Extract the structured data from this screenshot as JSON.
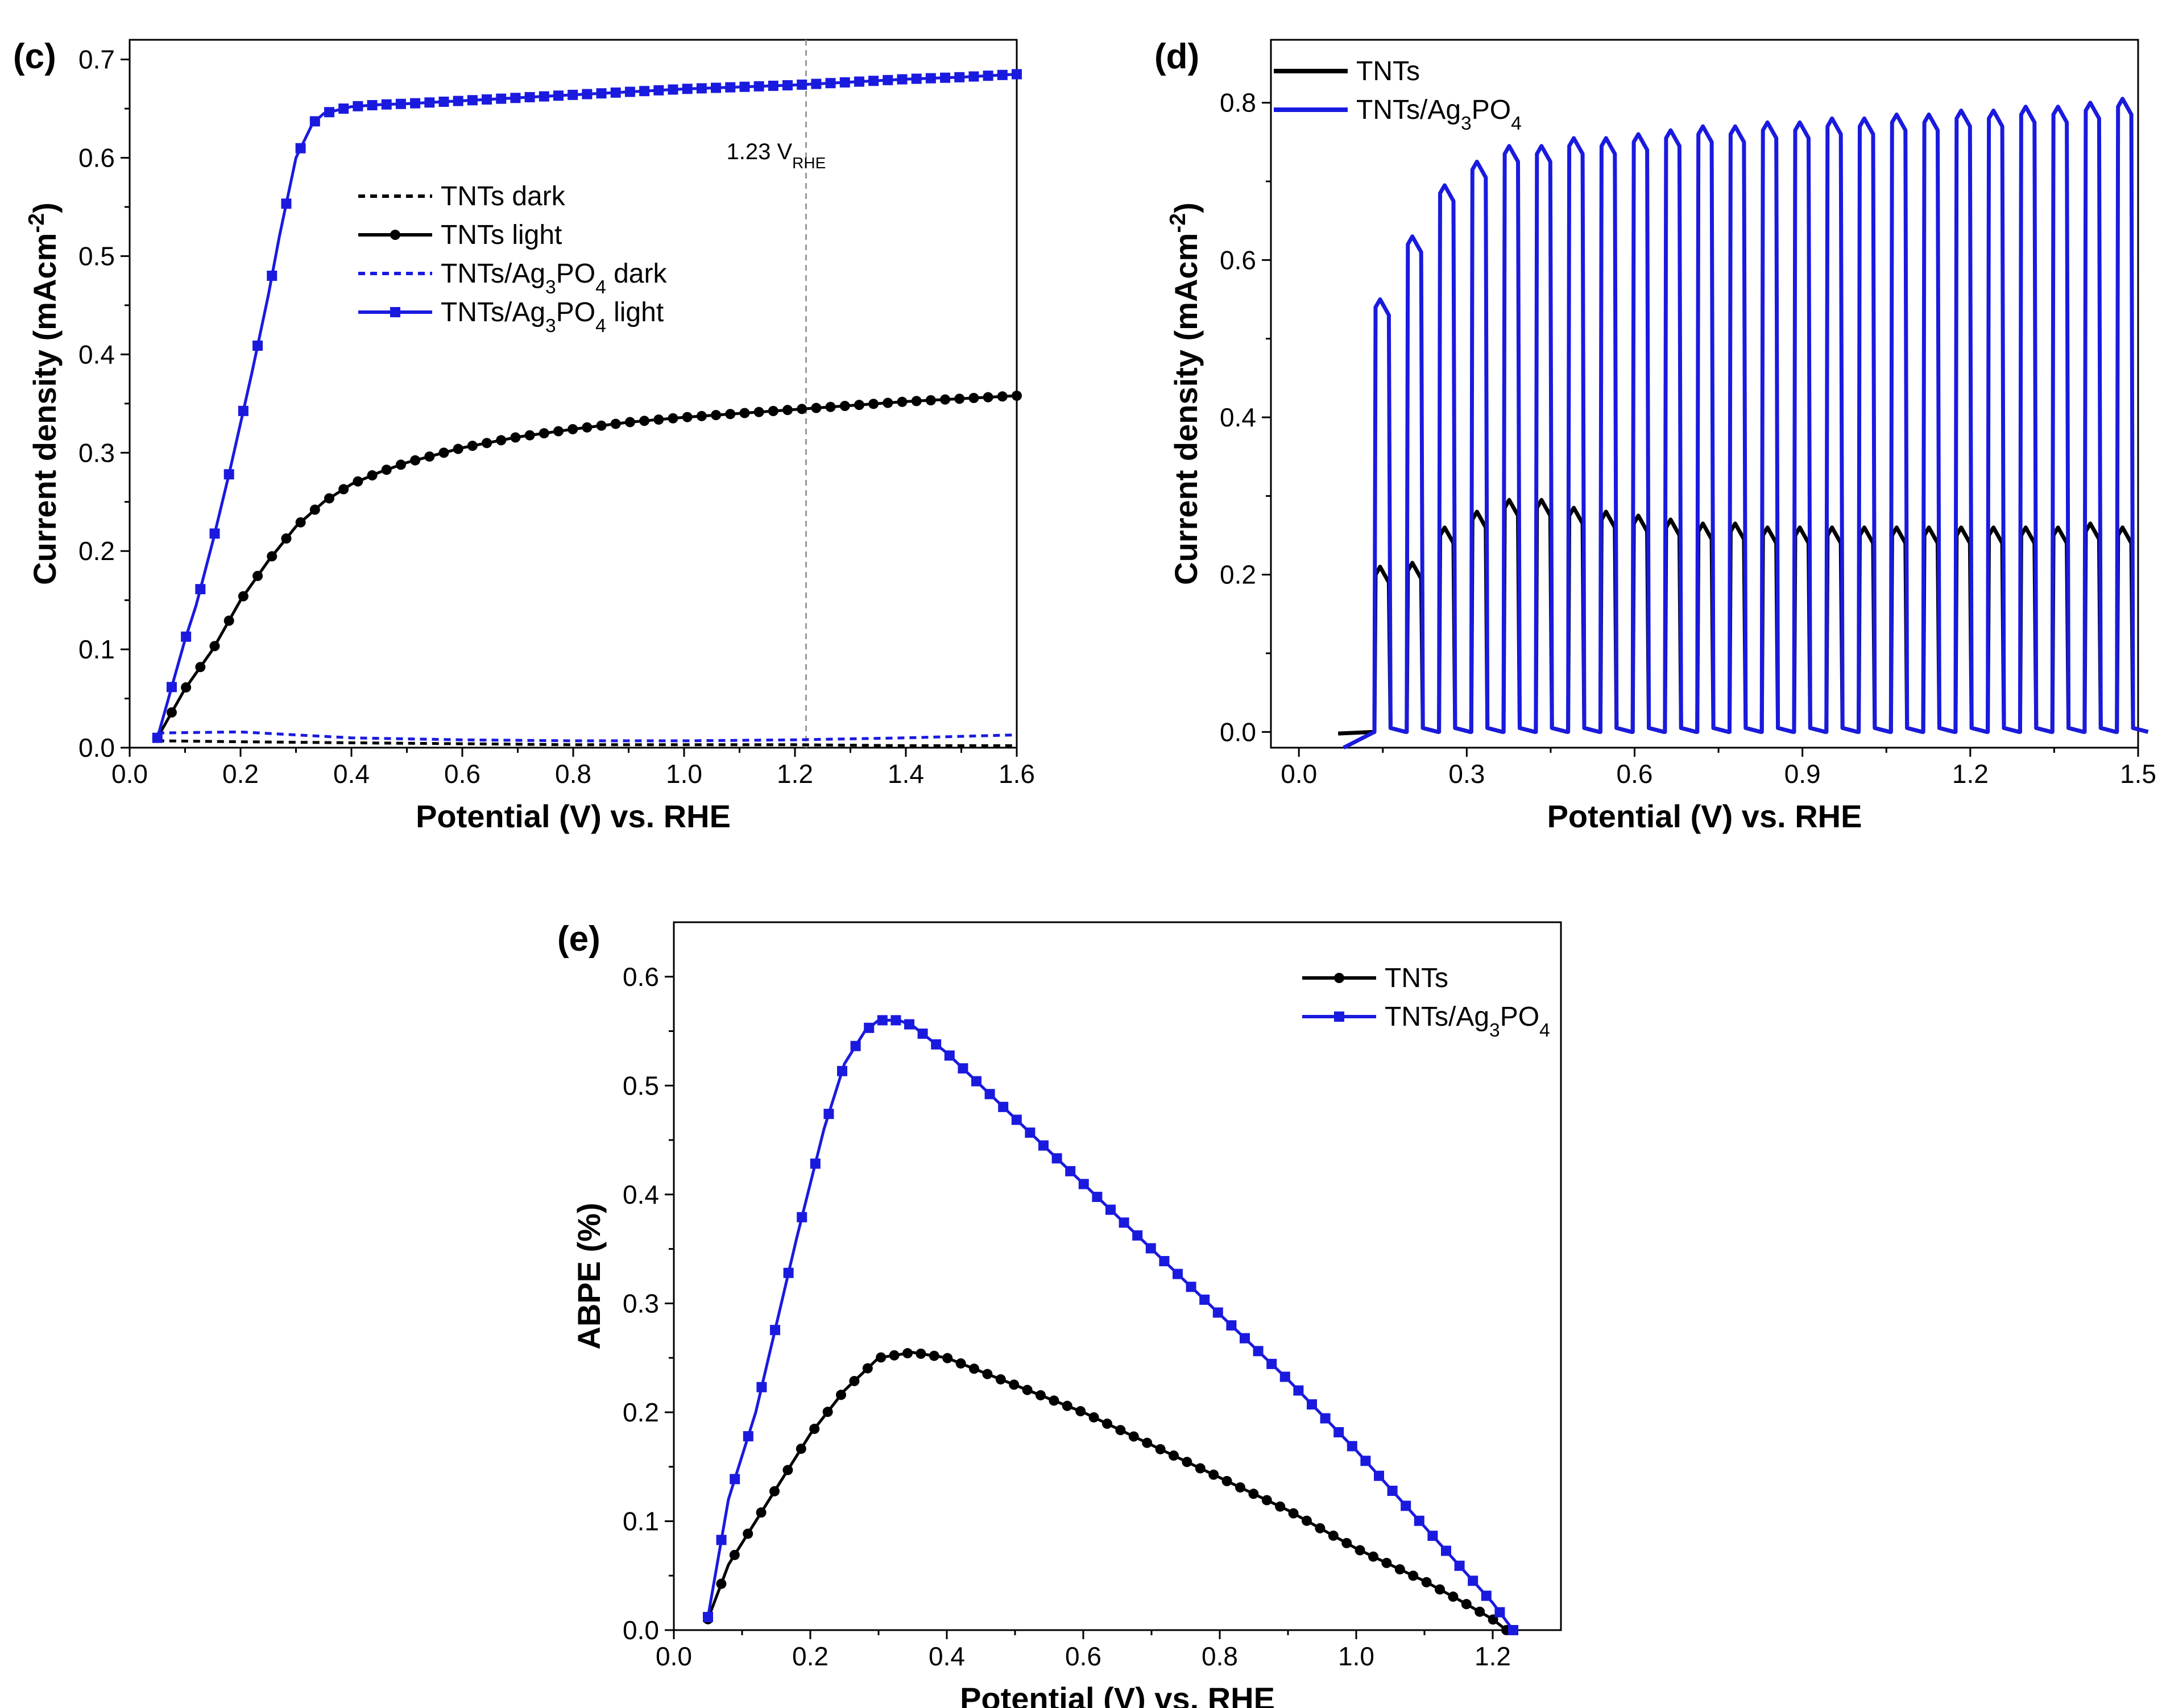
{
  "chart_data": [
    {
      "id": "c",
      "type": "line",
      "panel_label": "(c)",
      "title": "",
      "xlabel": "Potential (V) vs. RHE",
      "ylabel": "Current density (mAcm",
      "ylabel_sup": "-2",
      "ylabel_end": ")",
      "xlim": [
        0.0,
        1.6
      ],
      "ylim": [
        0.0,
        0.72
      ],
      "xticks": [
        0.0,
        0.2,
        0.4,
        0.6,
        0.8,
        1.0,
        1.2,
        1.4,
        1.6
      ],
      "xtick_labels": [
        "0.0",
        "0.2",
        "0.4",
        "0.6",
        "0.8",
        "1.0",
        "1.2",
        "1.4",
        "1.6"
      ],
      "yticks": [
        0.0,
        0.1,
        0.2,
        0.3,
        0.4,
        0.5,
        0.6,
        0.7
      ],
      "ytick_labels": [
        "0.0",
        "0.1",
        "0.2",
        "0.3",
        "0.4",
        "0.5",
        "0.6",
        "0.7"
      ],
      "grid": false,
      "legend_position": "center",
      "annotation": {
        "text": "1.23 V",
        "sub": "RHE",
        "x": 1.22
      },
      "series": [
        {
          "name": "TNTs dark",
          "label": "TNTs dark",
          "label_sub": "",
          "label_end": "",
          "color": "#000000",
          "style": "dotted",
          "marker": "none",
          "x": [
            0.05,
            0.2,
            0.4,
            0.6,
            0.8,
            1.0,
            1.2,
            1.4,
            1.6
          ],
          "values": [
            0.007,
            0.006,
            0.005,
            0.004,
            0.003,
            0.003,
            0.003,
            0.002,
            0.002
          ]
        },
        {
          "name": "TNTs light",
          "label": "TNTs light",
          "label_sub": "",
          "label_end": "",
          "color": "#000000",
          "style": "solid",
          "marker": "circle",
          "x": [
            0.05,
            0.08,
            0.1,
            0.15,
            0.2,
            0.25,
            0.3,
            0.35,
            0.4,
            0.45,
            0.5,
            0.6,
            0.7,
            0.8,
            0.9,
            1.0,
            1.1,
            1.2,
            1.3,
            1.4,
            1.5,
            1.6
          ],
          "values": [
            0.01,
            0.04,
            0.06,
            0.1,
            0.15,
            0.19,
            0.225,
            0.25,
            0.268,
            0.28,
            0.29,
            0.305,
            0.316,
            0.324,
            0.331,
            0.336,
            0.34,
            0.344,
            0.348,
            0.352,
            0.355,
            0.358
          ]
        },
        {
          "name": "TNTs/Ag3PO4 dark",
          "label": "TNTs/Ag",
          "label_sub": "3",
          "label_mid": "PO",
          "label_sub2": "4",
          "label_end": " dark",
          "color": "#1a1adf",
          "style": "dotted",
          "marker": "none",
          "x": [
            0.05,
            0.2,
            0.3,
            0.4,
            0.6,
            0.8,
            1.0,
            1.2,
            1.4,
            1.6
          ],
          "values": [
            0.015,
            0.016,
            0.013,
            0.01,
            0.008,
            0.007,
            0.007,
            0.008,
            0.01,
            0.013
          ]
        },
        {
          "name": "TNTs/Ag3PO4 light",
          "label": "TNTs/Ag",
          "label_sub": "3",
          "label_mid": "PO",
          "label_sub2": "4",
          "label_end": " light",
          "color": "#1a1adf",
          "style": "solid",
          "marker": "square",
          "x": [
            0.05,
            0.08,
            0.1,
            0.12,
            0.15,
            0.18,
            0.2,
            0.22,
            0.25,
            0.27,
            0.3,
            0.33,
            0.35,
            0.4,
            0.45,
            0.5,
            0.6,
            0.7,
            0.8,
            0.9,
            1.0,
            1.1,
            1.2,
            1.3,
            1.4,
            1.5,
            1.6
          ],
          "values": [
            0.01,
            0.07,
            0.11,
            0.145,
            0.21,
            0.28,
            0.33,
            0.38,
            0.46,
            0.52,
            0.6,
            0.635,
            0.645,
            0.652,
            0.654,
            0.655,
            0.658,
            0.661,
            0.664,
            0.667,
            0.67,
            0.672,
            0.674,
            0.677,
            0.68,
            0.682,
            0.685
          ]
        }
      ]
    },
    {
      "id": "d",
      "type": "line",
      "panel_label": "(d)",
      "title": "",
      "xlabel": "Potential (V) vs. RHE",
      "ylabel": "Current density (mAcm",
      "ylabel_sup": "-2",
      "ylabel_end": ")",
      "xlim": [
        -0.05,
        1.5
      ],
      "ylim": [
        -0.02,
        0.88
      ],
      "xticks": [
        0.0,
        0.3,
        0.6,
        0.9,
        1.2,
        1.5
      ],
      "xtick_labels": [
        "0.0",
        "0.3",
        "0.6",
        "0.9",
        "1.2",
        "1.5"
      ],
      "yticks": [
        0.0,
        0.2,
        0.4,
        0.6,
        0.8
      ],
      "ytick_labels": [
        "0.0",
        "0.2",
        "0.4",
        "0.6",
        "0.8"
      ],
      "grid": false,
      "legend_position": "top-left",
      "chopped": {
        "start": 0.135,
        "period": 0.0577,
        "count": 24,
        "on_fraction": 0.5
      },
      "series": [
        {
          "name": "TNTs",
          "label": "TNTs",
          "label_sub": "",
          "label_end": "",
          "color": "#000000",
          "style": "solid",
          "marker": "none",
          "baseline_x": [
            0.07,
            0.135
          ],
          "baseline_values": [
            -0.002,
            0.0
          ],
          "pulse_values": [
            0.2,
            0.205,
            0.25,
            0.27,
            0.285,
            0.285,
            0.275,
            0.27,
            0.265,
            0.26,
            0.255,
            0.255,
            0.25,
            0.25,
            0.25,
            0.25,
            0.25,
            0.25,
            0.25,
            0.25,
            0.25,
            0.25,
            0.255,
            0.25
          ]
        },
        {
          "name": "TNTs/Ag3PO4",
          "label": "TNTs/Ag",
          "label_sub": "3",
          "label_mid": "PO",
          "label_sub2": "4",
          "label_end": "",
          "color": "#1a1adf",
          "style": "solid",
          "marker": "none",
          "baseline_x": [
            0.08,
            0.135
          ],
          "baseline_values": [
            -0.02,
            0.0
          ],
          "pulse_values": [
            0.54,
            0.62,
            0.685,
            0.715,
            0.735,
            0.735,
            0.745,
            0.745,
            0.75,
            0.755,
            0.76,
            0.76,
            0.765,
            0.765,
            0.77,
            0.77,
            0.775,
            0.775,
            0.78,
            0.78,
            0.785,
            0.785,
            0.79,
            0.795
          ]
        }
      ]
    },
    {
      "id": "e",
      "type": "line",
      "panel_label": "(e)",
      "title": "",
      "xlabel": "Potential (V) vs. RHE",
      "ylabel": "ABPE (%)",
      "ylabel_sup": "",
      "ylabel_end": "",
      "xlim": [
        0.0,
        1.3
      ],
      "ylim": [
        0.0,
        0.65
      ],
      "xticks": [
        0.0,
        0.2,
        0.4,
        0.6,
        0.8,
        1.0,
        1.2
      ],
      "xtick_labels": [
        "0.0",
        "0.2",
        "0.4",
        "0.6",
        "0.8",
        "1.0",
        "1.2"
      ],
      "yticks": [
        0.0,
        0.1,
        0.2,
        0.3,
        0.4,
        0.5,
        0.6
      ],
      "ytick_labels": [
        "0.0",
        "0.1",
        "0.2",
        "0.3",
        "0.4",
        "0.5",
        "0.6"
      ],
      "grid": false,
      "legend_position": "top-right",
      "series": [
        {
          "name": "TNTs",
          "label": "TNTs",
          "label_sub": "",
          "label_end": "",
          "color": "#000000",
          "style": "solid",
          "marker": "circle",
          "x": [
            0.05,
            0.08,
            0.1,
            0.15,
            0.2,
            0.25,
            0.3,
            0.35,
            0.4,
            0.5,
            0.6,
            0.7,
            0.8,
            0.9,
            1.0,
            1.1,
            1.15,
            1.2,
            1.22
          ],
          "values": [
            0.01,
            0.06,
            0.08,
            0.13,
            0.18,
            0.22,
            0.25,
            0.255,
            0.25,
            0.225,
            0.2,
            0.17,
            0.14,
            0.11,
            0.075,
            0.045,
            0.028,
            0.01,
            0.0
          ]
        },
        {
          "name": "TNTs/Ag3PO4",
          "label": "TNTs/Ag",
          "label_sub": "3",
          "label_mid": "PO",
          "label_sub2": "4",
          "label_end": "",
          "color": "#1a1adf",
          "style": "solid",
          "marker": "square",
          "x": [
            0.05,
            0.08,
            0.1,
            0.12,
            0.15,
            0.18,
            0.2,
            0.22,
            0.25,
            0.28,
            0.3,
            0.33,
            0.35,
            0.38,
            0.4,
            0.45,
            0.5,
            0.6,
            0.7,
            0.8,
            0.9,
            1.0,
            1.1,
            1.15,
            1.2,
            1.23
          ],
          "values": [
            0.012,
            0.12,
            0.16,
            0.2,
            0.28,
            0.36,
            0.41,
            0.46,
            0.52,
            0.55,
            0.56,
            0.56,
            0.555,
            0.54,
            0.53,
            0.5,
            0.47,
            0.41,
            0.35,
            0.29,
            0.23,
            0.165,
            0.095,
            0.06,
            0.025,
            0.0
          ]
        }
      ]
    }
  ]
}
